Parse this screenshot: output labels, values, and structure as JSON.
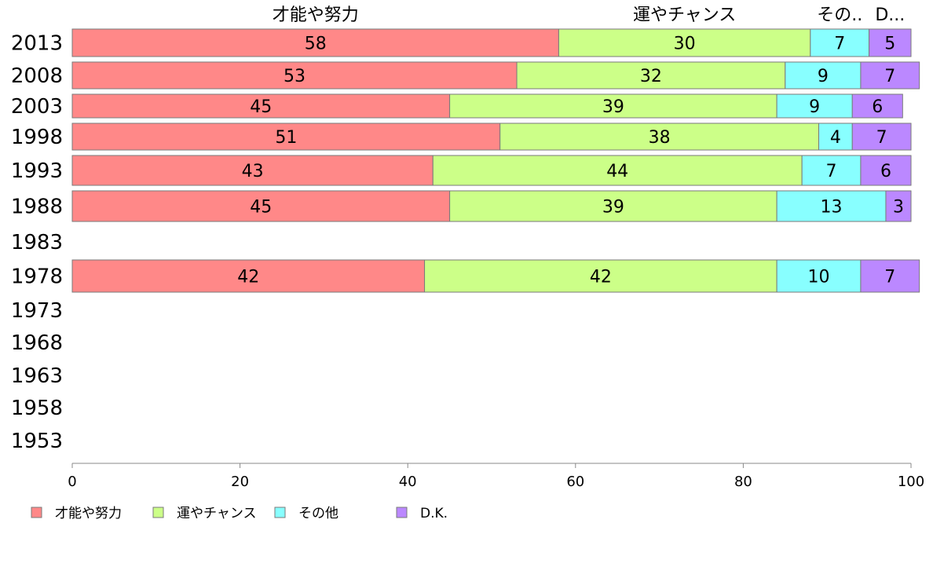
{
  "chart_data": {
    "type": "bar",
    "orientation": "horizontal",
    "stacked": true,
    "categories": [
      "2013",
      "2008",
      "2003",
      "1998",
      "1993",
      "1988",
      "1983",
      "1978",
      "1973",
      "1968",
      "1963",
      "1958",
      "1953"
    ],
    "series": [
      {
        "name": "才能や努力",
        "color": "#ff8888",
        "values": [
          58,
          53,
          45,
          51,
          43,
          45,
          null,
          42,
          null,
          null,
          null,
          null,
          null
        ]
      },
      {
        "name": "運やチャンス",
        "color": "#ccff88",
        "values": [
          30,
          32,
          39,
          38,
          44,
          39,
          null,
          42,
          null,
          null,
          null,
          null,
          null
        ]
      },
      {
        "name": "その他",
        "color": "#88ffff",
        "values": [
          7,
          9,
          9,
          4,
          7,
          13,
          null,
          10,
          null,
          null,
          null,
          null,
          null
        ]
      },
      {
        "name": "D.K.",
        "color": "#bb88ff",
        "values": [
          5,
          7,
          6,
          7,
          6,
          3,
          null,
          7,
          null,
          null,
          null,
          null,
          null
        ]
      }
    ],
    "top_labels": [
      "才能や努力",
      "運やチャンス",
      "その..",
      "D..."
    ],
    "xticks": [
      "0",
      "20",
      "40",
      "60",
      "80",
      "100"
    ],
    "xlim": [
      0,
      100
    ],
    "grid": false,
    "legend_position": "bottom-left"
  }
}
